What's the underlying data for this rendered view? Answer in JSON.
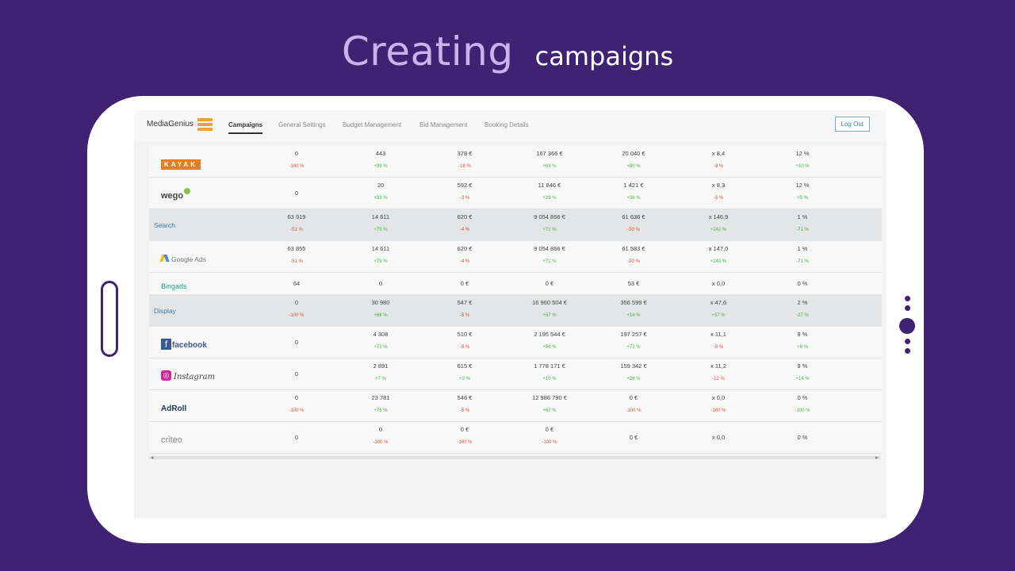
{
  "slide": {
    "title_big": "Creating",
    "title_small": "campaigns"
  },
  "app": {
    "brand": "MediaGenius",
    "tabs": [
      "Campaigns",
      "General Settings",
      "Budget Management",
      "Bid Management",
      "Booking Details"
    ],
    "active_tab": "Campaigns",
    "logout": "Log Out"
  },
  "rows": [
    {
      "type": "partner",
      "name": "KAYAK",
      "logo": "kayak-logo",
      "cells": [
        [
          "0",
          "-100 %",
          "neg"
        ],
        [
          "443",
          "+99 %",
          "pos"
        ],
        [
          "378 €",
          "-18 %",
          "neg"
        ],
        [
          "167 366 €",
          "+63 %",
          "pos"
        ],
        [
          "20 040 €",
          "+80 %",
          "pos"
        ],
        [
          "x 8,4",
          "-9 %",
          "neg"
        ],
        [
          "12 %",
          "+10 %",
          "pos"
        ]
      ]
    },
    {
      "type": "partner",
      "name": "wego",
      "logo": "wego-logo",
      "cells": [
        [
          "0",
          "",
          ""
        ],
        [
          "20",
          "+93 %",
          "pos"
        ],
        [
          "592 €",
          "-3 %",
          "neg"
        ],
        [
          "11 846 €",
          "+29 %",
          "pos"
        ],
        [
          "1 421 €",
          "+36 %",
          "pos"
        ],
        [
          "x 8,3",
          "-5 %",
          "neg"
        ],
        [
          "12 %",
          "+5 %",
          "pos"
        ]
      ]
    },
    {
      "type": "channel",
      "name": "Search",
      "cells": [
        [
          "63 919",
          "-51 %",
          "neg"
        ],
        [
          "14 611",
          "+79 %",
          "pos"
        ],
        [
          "620 €",
          "-4 %",
          "neg"
        ],
        [
          "9 054 866 €",
          "+71 %",
          "pos"
        ],
        [
          "61 636 €",
          "-50 %",
          "neg"
        ],
        [
          "x 146,9",
          "+242 %",
          "pos"
        ],
        [
          "1 %",
          "-71 %",
          "pos"
        ]
      ]
    },
    {
      "type": "partner",
      "name": "Google Ads",
      "logo": "google-ads-logo",
      "cells": [
        [
          "63 855",
          "-51 %",
          "neg"
        ],
        [
          "14 611",
          "+79 %",
          "pos"
        ],
        [
          "620 €",
          "-4 %",
          "neg"
        ],
        [
          "9 054 866 €",
          "+71 %",
          "pos"
        ],
        [
          "61 583 €",
          "-50 %",
          "neg"
        ],
        [
          "x 147,0",
          "+243 %",
          "pos"
        ],
        [
          "1 %",
          "-71 %",
          "pos"
        ]
      ]
    },
    {
      "type": "partner",
      "name": "Bingads",
      "logo": "bing-ads-logo",
      "small": true,
      "cells": [
        [
          "64",
          "",
          ""
        ],
        [
          "0",
          "",
          ""
        ],
        [
          "0 €",
          "",
          ""
        ],
        [
          "0 €",
          "",
          ""
        ],
        [
          "53 €",
          "",
          ""
        ],
        [
          "x 0,0",
          "",
          ""
        ],
        [
          "0 %",
          "",
          ""
        ]
      ]
    },
    {
      "type": "channel",
      "name": "Display",
      "cells": [
        [
          "0",
          "-100 %",
          "neg"
        ],
        [
          "30 980",
          "+66 %",
          "pos"
        ],
        [
          "547 €",
          "-5 %",
          "neg"
        ],
        [
          "16 960 504 €",
          "+57 %",
          "pos"
        ],
        [
          "356 599 €",
          "+14 %",
          "pos"
        ],
        [
          "x 47,6",
          "+37 %",
          "pos"
        ],
        [
          "2 %",
          "-27 %",
          "pos"
        ]
      ]
    },
    {
      "type": "partner",
      "name": "facebook",
      "logo": "facebook-logo",
      "cells": [
        [
          "0",
          "",
          ""
        ],
        [
          "4 308",
          "+72 %",
          "pos"
        ],
        [
          "510 €",
          "-9 %",
          "neg"
        ],
        [
          "2 195 544 €",
          "+56 %",
          "pos"
        ],
        [
          "197 257 €",
          "+71 %",
          "pos"
        ],
        [
          "x 11,1",
          "-8 %",
          "neg"
        ],
        [
          "9 %",
          "+8 %",
          "pos"
        ]
      ]
    },
    {
      "type": "partner",
      "name": "Instagram",
      "logo": "instagram-logo",
      "cells": [
        [
          "0",
          "",
          ""
        ],
        [
          "2 891",
          "+7 %",
          "pos"
        ],
        [
          "615 €",
          "+3 %",
          "pos"
        ],
        [
          "1 778 171 €",
          "+10 %",
          "pos"
        ],
        [
          "159 342 €",
          "+26 %",
          "pos"
        ],
        [
          "x 11,2",
          "-12 %",
          "neg"
        ],
        [
          "9 %",
          "+14 %",
          "pos"
        ]
      ]
    },
    {
      "type": "partner",
      "name": "AdRoll",
      "logo": "adroll-logo",
      "cells": [
        [
          "0",
          "-100 %",
          "neg"
        ],
        [
          "23 781",
          "+76 %",
          "pos"
        ],
        [
          "546 €",
          "-5 %",
          "neg"
        ],
        [
          "12 986 790 €",
          "+67 %",
          "pos"
        ],
        [
          "0 €",
          "-100 %",
          "neg"
        ],
        [
          "x 0,0",
          "-100 %",
          "neg"
        ],
        [
          "0 %",
          "-100 %",
          "pos"
        ]
      ]
    },
    {
      "type": "partner",
      "name": "criteo",
      "logo": "criteo-logo",
      "cells": [
        [
          "0",
          "",
          ""
        ],
        [
          "0",
          "-100 %",
          "neg"
        ],
        [
          "0 €",
          "-100 %",
          "neg"
        ],
        [
          "0 €",
          "-100 %",
          "neg"
        ],
        [
          "0 €",
          "",
          ""
        ],
        [
          "x 0,0",
          "",
          ""
        ],
        [
          "0 %",
          "",
          ""
        ]
      ]
    }
  ],
  "colors": {
    "background": "#3f2272",
    "accent": "#c9b3ee",
    "positive": "#4caf50",
    "negative": "#d94f3d",
    "link": "#3a7ca5"
  }
}
